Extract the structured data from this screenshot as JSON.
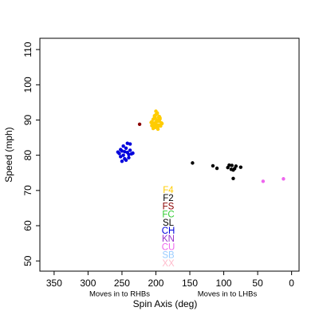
{
  "chart_data": {
    "type": "scatter",
    "x_label": "Spin Axis (deg)",
    "y_label": "Speed (mph)",
    "annotations": [
      "Moves in to RHBs",
      "Moves in to LHBs"
    ],
    "xlim": [
      371,
      -11
    ],
    "ylim": [
      47.1,
      113.2
    ],
    "x_reversed": true,
    "xticks": [
      350,
      300,
      250,
      200,
      150,
      100,
      50,
      0
    ],
    "yticks": [
      50,
      60,
      70,
      80,
      90,
      100,
      110
    ],
    "series": [
      {
        "name": "F4",
        "color": "#FFCC00",
        "x": [
          200,
          196,
          204,
          198,
          192,
          202,
          206,
          194,
          199,
          201,
          197,
          203,
          195,
          205,
          193,
          200,
          198,
          202,
          196,
          204,
          191,
          207,
          199,
          201,
          197,
          203,
          195,
          200,
          202,
          198,
          194,
          206,
          200,
          196
        ],
        "values": [
          91.5,
          90.8,
          90.2,
          89.6,
          89.2,
          88.9,
          89.5,
          90.3,
          88.5,
          87.9,
          88.1,
          89.1,
          91.0,
          88.7,
          88.3,
          92.5,
          92.0,
          91.2,
          89.9,
          87.6,
          89.0,
          89.3,
          90.0,
          90.6,
          87.4,
          88.2,
          89.7,
          88.8,
          90.9,
          91.8,
          90.6,
          88.4,
          89.4,
          88.6
        ]
      },
      {
        "name": "F2",
        "color": "#000000",
        "x": [],
        "values": []
      },
      {
        "name": "FS",
        "color": "#8B0000",
        "x": [
          224
        ],
        "values": [
          88.8
        ]
      },
      {
        "name": "FC",
        "color": "#33CC33",
        "x": [],
        "values": []
      },
      {
        "name": "SL",
        "color": "#000000",
        "x": [
          146,
          116,
          110,
          94,
          89,
          86,
          84,
          88,
          92,
          75,
          86,
          82
        ],
        "values": [
          77.8,
          77.0,
          76.3,
          76.5,
          76.0,
          73.4,
          76.2,
          77.1,
          77.2,
          76.6,
          75.8,
          76.9
        ]
      },
      {
        "name": "CH",
        "color": "#0000DD",
        "x": [
          254,
          250,
          246,
          242,
          238,
          236,
          248,
          252,
          244,
          240,
          256,
          234,
          250,
          246,
          242,
          238,
          248,
          244,
          252,
          240
        ],
        "values": [
          80.5,
          81.2,
          81.0,
          80.8,
          83.2,
          80.4,
          82.6,
          79.6,
          78.6,
          80.2,
          80.9,
          80.6,
          78.3,
          79.0,
          83.4,
          81.4,
          80.0,
          82.0,
          81.6,
          79.3
        ]
      },
      {
        "name": "KN",
        "color": "#9933CC",
        "x": [],
        "values": []
      },
      {
        "name": "CU",
        "color": "#EE66EE",
        "x": [
          42,
          12
        ],
        "values": [
          72.6,
          73.3
        ]
      },
      {
        "name": "SB",
        "color": "#99CCFF",
        "x": [],
        "values": []
      },
      {
        "name": "XX",
        "color": "#FFBBCC",
        "x": [],
        "values": []
      }
    ]
  }
}
